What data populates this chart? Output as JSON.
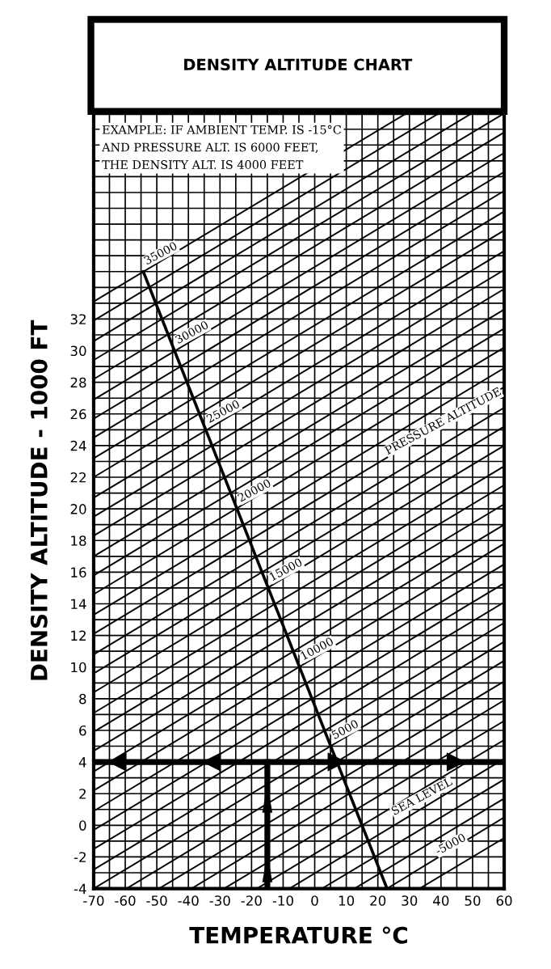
{
  "chart_data": {
    "type": "line",
    "title": "DENSITY ALTITUDE CHART",
    "xlabel": "TEMPERATURE °C",
    "ylabel": "DENSITY ALTITUDE - 1000 FT",
    "xlim": [
      -70,
      60
    ],
    "ylim": [
      -4,
      45
    ],
    "xticks": [
      -70,
      {
        "value": -65,
        "label": null
      },
      -60,
      {
        "value": -55,
        "label": null
      },
      -50,
      {
        "value": -45,
        "label": null
      },
      -40,
      {
        "value": -35,
        "label": null
      },
      -30,
      {
        "value": -25,
        "label": null
      },
      -20,
      {
        "value": -15,
        "label": null
      },
      -10,
      {
        "value": -5,
        "label": null
      },
      0,
      {
        "value": 5,
        "label": null
      },
      10,
      {
        "value": 15,
        "label": null
      },
      20,
      {
        "value": 25,
        "label": null
      },
      30,
      {
        "value": 35,
        "label": null
      },
      40,
      {
        "value": 45,
        "label": null
      },
      50,
      {
        "value": 55,
        "label": null
      },
      60
    ],
    "yticks": [
      -4,
      {
        "value": -3,
        "label": null
      },
      -2,
      {
        "value": -1,
        "label": null
      },
      0,
      {
        "value": 1,
        "label": null
      },
      2,
      {
        "value": 3,
        "label": null
      },
      4,
      {
        "value": 5,
        "label": null
      },
      6,
      {
        "value": 7,
        "label": null
      },
      8,
      {
        "value": 9,
        "label": null
      },
      10,
      {
        "value": 11,
        "label": null
      },
      12,
      {
        "value": 13,
        "label": null
      },
      14,
      {
        "value": 15,
        "label": null
      },
      16,
      {
        "value": 17,
        "label": null
      },
      18,
      {
        "value": 19,
        "label": null
      },
      20,
      {
        "value": 21,
        "label": null
      },
      22,
      {
        "value": 23,
        "label": null
      },
      24,
      {
        "value": 25,
        "label": null
      },
      26,
      {
        "value": 27,
        "label": null
      },
      28,
      {
        "value": 29,
        "label": null
      },
      30,
      {
        "value": 31,
        "label": null
      },
      32,
      {
        "value": 33,
        "label": null
      },
      {
        "value": 34,
        "label": null
      },
      {
        "value": 35,
        "label": null
      },
      {
        "value": 36,
        "label": null
      },
      {
        "value": 37,
        "label": null
      },
      {
        "value": 38,
        "label": null
      },
      {
        "value": 39,
        "label": null
      },
      {
        "value": 40,
        "label": null
      },
      {
        "value": 41,
        "label": null
      },
      {
        "value": 42,
        "label": null
      },
      {
        "value": 43,
        "label": null
      },
      {
        "value": 44,
        "label": null
      },
      {
        "value": 45,
        "label": null
      }
    ],
    "grid": true,
    "marker": "none",
    "ref_lines": [
      {
        "axis": "y",
        "value": 4
      }
    ],
    "line_style": "solid",
    "series": [
      {
        "color": "#000000",
        "x": [
          33.2,
          60
        ],
        "values": [
          -4,
          -0.8
        ]
      },
      {
        "color": "#000000",
        "x": [
          22.9,
          60
        ],
        "values": [
          -4,
          0.5
        ]
      },
      {
        "color": "#000000",
        "x": [
          12.6,
          60
        ],
        "values": [
          -4,
          1.7
        ]
      },
      {
        "color": "#000000",
        "x": [
          2.3,
          60
        ],
        "values": [
          -4,
          2.9
        ]
      },
      {
        "color": "#000000",
        "x": [
          -8.0,
          60
        ],
        "values": [
          -4,
          4.2
        ]
      },
      {
        "color": "#000000",
        "x": [
          -18.3,
          60
        ],
        "values": [
          -4,
          5.4
        ]
      },
      {
        "color": "#000000",
        "x": [
          -28.7,
          60
        ],
        "values": [
          -4,
          6.6
        ]
      },
      {
        "color": "#000000",
        "x": [
          -39.0,
          60
        ],
        "values": [
          -4,
          7.9
        ]
      },
      {
        "color": "#000000",
        "x": [
          -49.3,
          60
        ],
        "values": [
          -4,
          9.1
        ]
      },
      {
        "color": "#000000",
        "x": [
          -59.6,
          60
        ],
        "values": [
          -4,
          10.4
        ]
      },
      {
        "color": "#000000",
        "x": [
          -70,
          60
        ],
        "values": [
          -4.0,
          11.6
        ]
      },
      {
        "color": "#000000",
        "x": [
          -70,
          60
        ],
        "values": [
          -2.8,
          12.8
        ]
      },
      {
        "color": "#000000",
        "x": [
          -70,
          60
        ],
        "values": [
          -1.5,
          14.1
        ]
      },
      {
        "color": "#000000",
        "x": [
          -70,
          60
        ],
        "values": [
          -0.3,
          15.3
        ]
      },
      {
        "color": "#000000",
        "x": [
          -70,
          60
        ],
        "values": [
          0.9,
          16.5
        ]
      },
      {
        "color": "#000000",
        "x": [
          -70,
          60
        ],
        "values": [
          2.2,
          17.8
        ]
      },
      {
        "color": "#000000",
        "x": [
          -70,
          60
        ],
        "values": [
          3.4,
          19.0
        ]
      },
      {
        "color": "#000000",
        "x": [
          -70,
          60
        ],
        "values": [
          4.7,
          20.3
        ]
      },
      {
        "color": "#000000",
        "x": [
          -70,
          60
        ],
        "values": [
          5.9,
          21.5
        ]
      },
      {
        "color": "#000000",
        "x": [
          -70,
          60
        ],
        "values": [
          7.1,
          22.7
        ]
      },
      {
        "color": "#000000",
        "x": [
          -70,
          60
        ],
        "values": [
          8.4,
          24.0
        ]
      },
      {
        "color": "#000000",
        "x": [
          -70,
          60
        ],
        "values": [
          9.6,
          25.2
        ]
      },
      {
        "color": "#000000",
        "x": [
          -70,
          60
        ],
        "values": [
          10.8,
          26.4
        ]
      },
      {
        "color": "#000000",
        "x": [
          -70,
          60
        ],
        "values": [
          12.1,
          27.7
        ]
      },
      {
        "color": "#000000",
        "x": [
          -70,
          60
        ],
        "values": [
          13.3,
          28.9
        ]
      },
      {
        "color": "#000000",
        "x": [
          -70,
          60
        ],
        "values": [
          14.6,
          30.2
        ]
      },
      {
        "color": "#000000",
        "x": [
          -70,
          60
        ],
        "values": [
          15.8,
          31.4
        ]
      },
      {
        "color": "#000000",
        "x": [
          -70,
          60
        ],
        "values": [
          17.0,
          32.6
        ]
      },
      {
        "color": "#000000",
        "x": [
          -70,
          60
        ],
        "values": [
          18.3,
          33.9
        ]
      },
      {
        "color": "#000000",
        "x": [
          -70,
          60
        ],
        "values": [
          19.5,
          35.1
        ]
      },
      {
        "color": "#000000",
        "x": [
          -70,
          60
        ],
        "values": [
          20.7,
          36.3
        ]
      },
      {
        "color": "#000000",
        "x": [
          -70,
          60
        ],
        "values": [
          22.0,
          37.6
        ]
      },
      {
        "color": "#000000",
        "x": [
          -70,
          60
        ],
        "values": [
          23.2,
          38.8
        ]
      },
      {
        "color": "#000000",
        "x": [
          -70,
          60
        ],
        "values": [
          24.5,
          40.1
        ]
      },
      {
        "color": "#000000",
        "x": [
          -70,
          60
        ],
        "values": [
          25.7,
          41.3
        ]
      },
      {
        "color": "#000000",
        "x": [
          -70,
          60
        ],
        "values": [
          26.9,
          42.5
        ]
      },
      {
        "color": "#000000",
        "x": [
          -70,
          60
        ],
        "values": [
          28.2,
          43.8
        ]
      },
      {
        "color": "#000000",
        "x": [
          -70,
          60
        ],
        "values": [
          29.4,
          45.0
        ]
      },
      {
        "color": "#000000",
        "x": [
          -70,
          49.7
        ],
        "values": [
          30.6,
          45.0
        ]
      },
      {
        "color": "#000000",
        "x": [
          -70,
          39.3
        ],
        "values": [
          31.9,
          45.0
        ]
      },
      {
        "color": "#000000",
        "x": [
          -70,
          29.0
        ],
        "values": [
          33.1,
          45.0
        ]
      },
      {
        "color": "#000000",
        "x": [
          -54.3,
          22.9
        ],
        "values": [
          35,
          -4
        ]
      },
      {
        "color": "#000000",
        "x": [
          -15,
          -15
        ],
        "values": [
          -4,
          4
        ]
      }
    ],
    "annotations": [
      "EXAMPLE: IF AMBIENT TEMP. IS -15°C\nAND PRESSURE ALT. IS 6000 FEET,\nTHE DENSITY ALT. IS 4000 FEET",
      {
        "text": "35000",
        "x": -54.3,
        "y": 35
      },
      {
        "text": "30000",
        "x": -44.4,
        "y": 30
      },
      {
        "text": "25000",
        "x": -34.5,
        "y": 25
      },
      {
        "text": "20000",
        "x": -24.6,
        "y": 20
      },
      {
        "text": "15000",
        "x": -14.7,
        "y": 15
      },
      {
        "text": "10000",
        "x": -4.8,
        "y": 10
      },
      {
        "text": "5000",
        "x": 5.1,
        "y": 5
      },
      {
        "text": "PRESSURE ALTITUDE",
        "x": 22,
        "y": 23
      },
      {
        "text": "SEA LEVEL",
        "x": 24,
        "y": 0.2
      },
      {
        "text": "-5000",
        "x": 38,
        "y": -2.3
      }
    ]
  }
}
